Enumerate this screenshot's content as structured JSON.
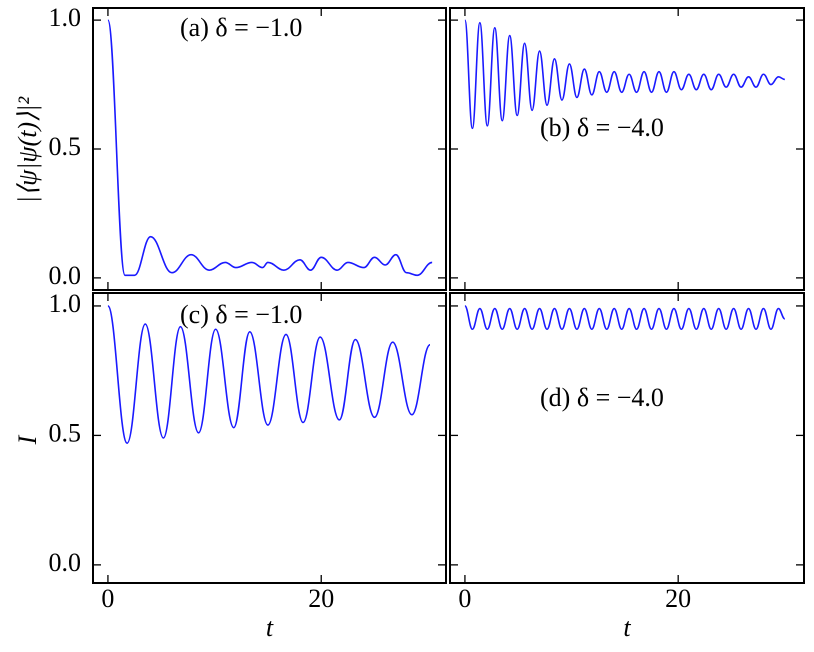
{
  "chart_data": [
    {
      "type": "line",
      "annotation": "(a) δ = −1.0",
      "ylabel": "|⟨ψ|ψ(t)⟩|²",
      "color": "#1a1aff",
      "x": [
        0,
        1.6,
        2.5,
        4.0,
        6.0,
        7.8,
        9.5,
        11.0,
        12.0,
        13.5,
        14.5,
        15.0,
        16.5,
        18.0,
        19.0,
        20.0,
        21.5,
        22.5,
        24.0,
        25.0,
        26.0,
        27.0,
        28.0,
        29.0,
        30.4
      ],
      "values": [
        1.0,
        0.01,
        0.01,
        0.16,
        0.02,
        0.09,
        0.03,
        0.06,
        0.04,
        0.06,
        0.04,
        0.06,
        0.03,
        0.07,
        0.03,
        0.08,
        0.03,
        0.06,
        0.04,
        0.08,
        0.05,
        0.09,
        0.02,
        0.01,
        0.06
      ],
      "xlim": [
        -1.4,
        31.7
      ],
      "ylim": [
        -0.047,
        1.047
      ],
      "xticks": [
        0,
        20
      ],
      "xtick_labels": false,
      "yticks": [
        {
          "value": 0,
          "label": "0.0"
        },
        {
          "value": 0.5,
          "label": "0.5"
        },
        {
          "value": 1,
          "label": "1.0"
        }
      ],
      "ytick_labels": true
    },
    {
      "type": "line",
      "annotation": "(b) δ = −4.0",
      "color": "#1a1aff",
      "x": [
        0,
        0.7,
        1.4,
        2.1,
        2.8,
        3.5,
        4.2,
        4.9,
        5.6,
        6.3,
        7.0,
        7.7,
        8.4,
        9.1,
        9.8,
        10.5,
        11.2,
        11.9,
        12.6,
        13.3,
        14.0,
        14.7,
        15.4,
        16.1,
        16.8,
        17.5,
        18.2,
        18.9,
        19.6,
        20.3,
        21.0,
        21.7,
        22.4,
        23.1,
        23.8,
        24.5,
        25.2,
        25.9,
        26.6,
        27.3,
        28.0,
        28.7,
        29.4,
        30.0
      ],
      "values": [
        1.0,
        0.58,
        0.99,
        0.59,
        0.97,
        0.61,
        0.94,
        0.63,
        0.91,
        0.65,
        0.88,
        0.67,
        0.85,
        0.69,
        0.83,
        0.7,
        0.81,
        0.71,
        0.8,
        0.72,
        0.8,
        0.72,
        0.79,
        0.72,
        0.8,
        0.72,
        0.8,
        0.72,
        0.8,
        0.73,
        0.79,
        0.73,
        0.79,
        0.73,
        0.79,
        0.74,
        0.79,
        0.74,
        0.78,
        0.74,
        0.79,
        0.75,
        0.78,
        0.77
      ],
      "xlim": [
        -1.4,
        31.8
      ],
      "ylim": [
        -0.047,
        1.047
      ],
      "xticks": [
        0,
        20
      ],
      "xtick_labels": false,
      "yticks": [
        0,
        0.5,
        1
      ],
      "ytick_labels": false
    },
    {
      "type": "line",
      "annotation": "(c) δ = −1.0",
      "ylabel": "I",
      "xlabel": "t",
      "color": "#1a1aff",
      "x": [
        0,
        1.8,
        3.5,
        5.2,
        6.8,
        8.5,
        10.1,
        11.8,
        13.3,
        15.0,
        16.7,
        18.3,
        19.9,
        21.7,
        23.2,
        25.0,
        26.7,
        28.5,
        30.2
      ],
      "values": [
        1.0,
        0.47,
        0.93,
        0.49,
        0.92,
        0.51,
        0.91,
        0.53,
        0.9,
        0.54,
        0.89,
        0.55,
        0.88,
        0.56,
        0.87,
        0.57,
        0.86,
        0.58,
        0.85
      ],
      "xlim": [
        -1.4,
        31.7
      ],
      "ylim": [
        -0.07,
        1.05
      ],
      "xticks": [
        0,
        20
      ],
      "xtick_labels": true,
      "yticks": [
        {
          "value": 0,
          "label": "0.0"
        },
        {
          "value": 0.5,
          "label": "0.5"
        },
        {
          "value": 1,
          "label": "1.0"
        }
      ],
      "ytick_labels": true
    },
    {
      "type": "line",
      "annotation": "(d) δ = −4.0",
      "xlabel": "t",
      "color": "#1a1aff",
      "x": [
        0,
        0.7,
        1.4,
        2.1,
        2.8,
        3.5,
        4.2,
        4.9,
        5.6,
        6.3,
        7.0,
        7.7,
        8.4,
        9.1,
        9.8,
        10.5,
        11.2,
        11.9,
        12.6,
        13.3,
        14.0,
        14.7,
        15.4,
        16.1,
        16.8,
        17.5,
        18.2,
        18.9,
        19.6,
        20.3,
        21.0,
        21.7,
        22.4,
        23.1,
        23.8,
        24.5,
        25.2,
        25.9,
        26.6,
        27.3,
        28.0,
        28.7,
        29.4,
        30.0
      ],
      "values": [
        1.0,
        0.91,
        0.99,
        0.91,
        0.99,
        0.91,
        0.99,
        0.91,
        0.99,
        0.91,
        0.99,
        0.91,
        0.99,
        0.91,
        0.99,
        0.91,
        0.99,
        0.91,
        0.99,
        0.91,
        0.99,
        0.91,
        0.99,
        0.91,
        0.99,
        0.91,
        0.99,
        0.91,
        0.99,
        0.91,
        0.99,
        0.91,
        0.99,
        0.91,
        0.99,
        0.91,
        0.99,
        0.91,
        0.99,
        0.91,
        0.99,
        0.91,
        0.99,
        0.95
      ],
      "xlim": [
        -1.4,
        31.8
      ],
      "ylim": [
        -0.07,
        1.05
      ],
      "xticks": [
        0,
        20
      ],
      "xtick_labels": true,
      "yticks": [
        0,
        0.5,
        1
      ],
      "ytick_labels": false
    }
  ]
}
